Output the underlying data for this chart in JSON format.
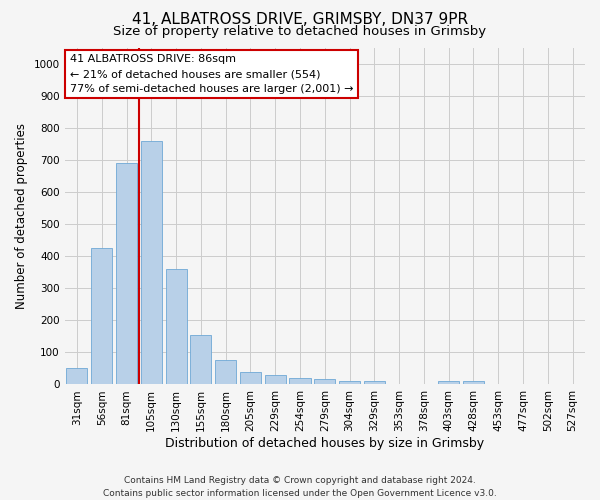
{
  "title": "41, ALBATROSS DRIVE, GRIMSBY, DN37 9PR",
  "subtitle": "Size of property relative to detached houses in Grimsby",
  "xlabel": "Distribution of detached houses by size in Grimsby",
  "ylabel": "Number of detached properties",
  "categories": [
    "31sqm",
    "56sqm",
    "81sqm",
    "105sqm",
    "130sqm",
    "155sqm",
    "180sqm",
    "205sqm",
    "229sqm",
    "254sqm",
    "279sqm",
    "304sqm",
    "329sqm",
    "353sqm",
    "378sqm",
    "403sqm",
    "428sqm",
    "453sqm",
    "477sqm",
    "502sqm",
    "527sqm"
  ],
  "values": [
    50,
    425,
    690,
    760,
    360,
    155,
    75,
    40,
    30,
    20,
    18,
    10,
    10,
    0,
    0,
    10,
    10,
    0,
    0,
    0,
    0
  ],
  "bar_color": "#b8d0e8",
  "bar_edge_color": "#6fa8d6",
  "red_line_x": 2.5,
  "annotation_text": "41 ALBATROSS DRIVE: 86sqm\n← 21% of detached houses are smaller (554)\n77% of semi-detached houses are larger (2,001) →",
  "annotation_box_color": "#ffffff",
  "annotation_box_edge": "#cc0000",
  "ylim": [
    0,
    1050
  ],
  "yticks": [
    0,
    100,
    200,
    300,
    400,
    500,
    600,
    700,
    800,
    900,
    1000
  ],
  "grid_color": "#cccccc",
  "background_color": "#f5f5f5",
  "footer_line1": "Contains HM Land Registry data © Crown copyright and database right 2024.",
  "footer_line2": "Contains public sector information licensed under the Open Government Licence v3.0.",
  "title_fontsize": 11,
  "subtitle_fontsize": 9.5,
  "xlabel_fontsize": 9,
  "ylabel_fontsize": 8.5,
  "tick_fontsize": 7.5,
  "annotation_fontsize": 8,
  "footer_fontsize": 6.5
}
